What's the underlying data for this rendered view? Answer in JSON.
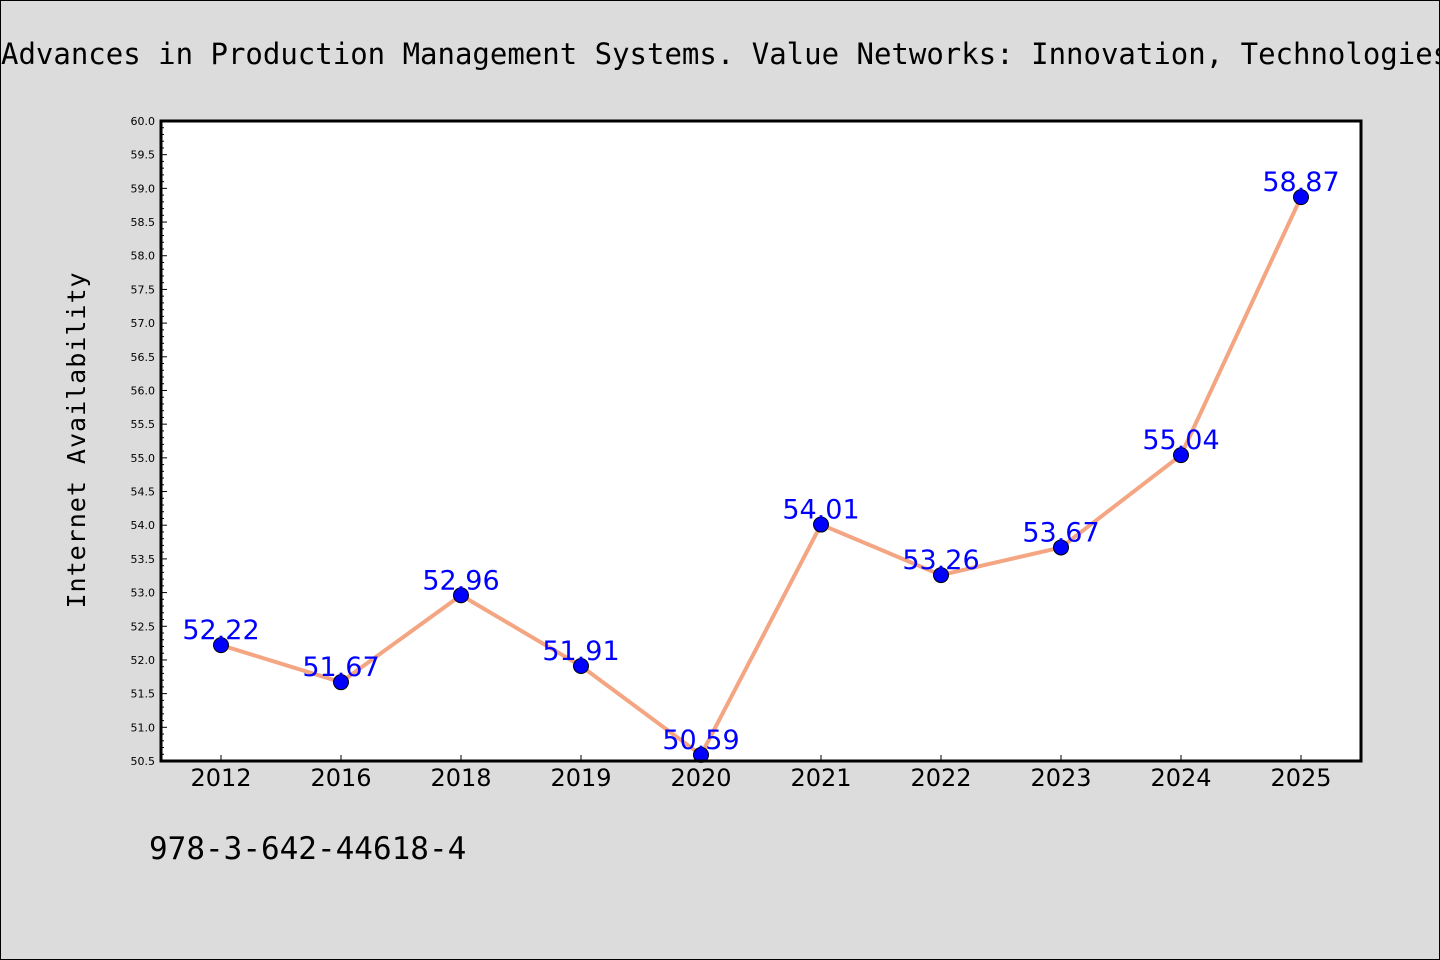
{
  "header": {
    "title": "Advances in Production Management Systems. Value Networks: Innovation, Technologies, and Management"
  },
  "footer": {
    "isbn": "978-3-642-44618-4"
  },
  "colors": {
    "background": "#dcdcdc",
    "plot_background": "#ffffff",
    "line": "#f4a582",
    "marker": "#0000ff",
    "data_label": "#0000ff"
  },
  "chart_data": {
    "type": "line",
    "title": "",
    "xlabel": "",
    "ylabel": "Internet Availability",
    "categories": [
      "2012",
      "2016",
      "2018",
      "2019",
      "2020",
      "2021",
      "2022",
      "2023",
      "2024",
      "2025"
    ],
    "series": [
      {
        "values": [
          52.22,
          51.67,
          52.96,
          51.91,
          50.59,
          54.01,
          53.26,
          53.67,
          55.04,
          58.87
        ]
      }
    ],
    "data_labels": [
      "52.22",
      "51.67",
      "52.96",
      "51.91",
      "50.59",
      "54.01",
      "53.26",
      "53.67",
      "55.04",
      "58.87"
    ],
    "ylim": [
      50.5,
      60.0
    ],
    "yticks": [
      "50.5",
      "51.0",
      "51.5",
      "52.0",
      "52.5",
      "53.0",
      "53.5",
      "54.0",
      "54.5",
      "55.0",
      "55.5",
      "56.0",
      "56.5",
      "57.0",
      "57.5",
      "58.0",
      "58.5",
      "59.0",
      "59.5",
      "60.0"
    ],
    "grid": false,
    "legend": "none"
  }
}
